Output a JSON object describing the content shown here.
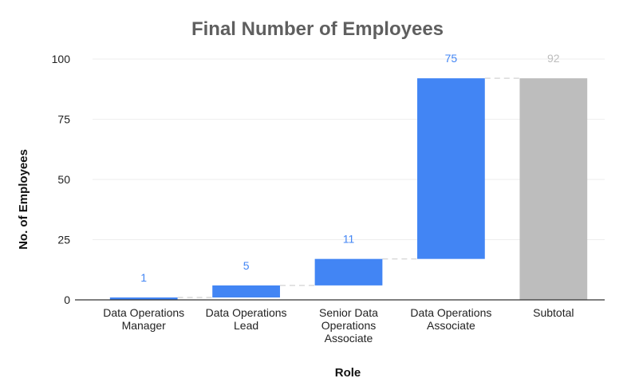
{
  "chart_data": {
    "type": "bar",
    "subtype": "waterfall",
    "title": "Final Number of Employees",
    "xlabel": "Role",
    "ylabel": "No. of Employees",
    "ylim": [
      0,
      100
    ],
    "yticks": [
      0,
      25,
      50,
      75,
      100
    ],
    "grid": true,
    "legend": "none",
    "categories": [
      [
        "Data Operations",
        "Manager"
      ],
      [
        "Data Operations",
        "Lead"
      ],
      [
        "Senior Data",
        "Operations",
        "Associate"
      ],
      [
        "Data Operations",
        "Associate"
      ],
      [
        "Subtotal"
      ]
    ],
    "values": [
      1,
      5,
      11,
      75,
      92
    ],
    "value_labels": [
      "1",
      "5",
      "11",
      "75",
      "92"
    ],
    "kinds": [
      "increase",
      "increase",
      "increase",
      "increase",
      "total"
    ],
    "colors": {
      "increase": "#4285f4",
      "total": "#bdbdbd",
      "connector": "#d9d9d9",
      "grid": "#eeeeee",
      "axis": "#333333"
    }
  }
}
